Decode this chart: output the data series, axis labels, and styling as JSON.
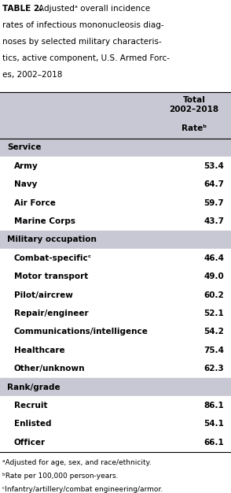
{
  "title_bold": "TABLE 2.",
  "title_rest": " Adjustedᵃ overall incidence rates of infectious mononucleosis diagnoses by selected military characteristics, active component, U.S. Armed Forces, 2002–2018",
  "col_header_line1": "Total\n2002–2018",
  "col_header_line2": "Rateᵇ",
  "section_bg": "#c8c8d4",
  "row_bg_light": "#ffffff",
  "row_bg_alt": "#f0f0f0",
  "sections": [
    {
      "header": "Service",
      "rows": [
        {
          "label": "Army",
          "value": "53.4"
        },
        {
          "label": "Navy",
          "value": "64.7"
        },
        {
          "label": "Air Force",
          "value": "59.7"
        },
        {
          "label": "Marine Corps",
          "value": "43.7"
        }
      ]
    },
    {
      "header": "Military occupation",
      "rows": [
        {
          "label": "Combat-specificᶜ",
          "value": "46.4"
        },
        {
          "label": "Motor transport",
          "value": "49.0"
        },
        {
          "label": "Pilot/aircrew",
          "value": "60.2"
        },
        {
          "label": "Repair/engineer",
          "value": "52.1"
        },
        {
          "label": "Communications/intelligence",
          "value": "54.2"
        },
        {
          "label": "Healthcare",
          "value": "75.4"
        },
        {
          "label": "Other/unknown",
          "value": "62.3"
        }
      ]
    },
    {
      "header": "Rank/grade",
      "rows": [
        {
          "label": "Recruit",
          "value": "86.1"
        },
        {
          "label": "Enlisted",
          "value": "54.1"
        },
        {
          "label": "Officer",
          "value": "66.1"
        }
      ]
    }
  ],
  "footnotes": [
    "ᵃAdjusted for age, sex, and race/ethnicity.",
    "ᵇRate per 100,000 person-years.",
    "ᶜInfantry/artillery/combat engineering/armor."
  ],
  "font_family": "DejaVu Sans",
  "font_size_title": 7.5,
  "font_size_body": 7.5,
  "font_size_footnote": 6.5
}
